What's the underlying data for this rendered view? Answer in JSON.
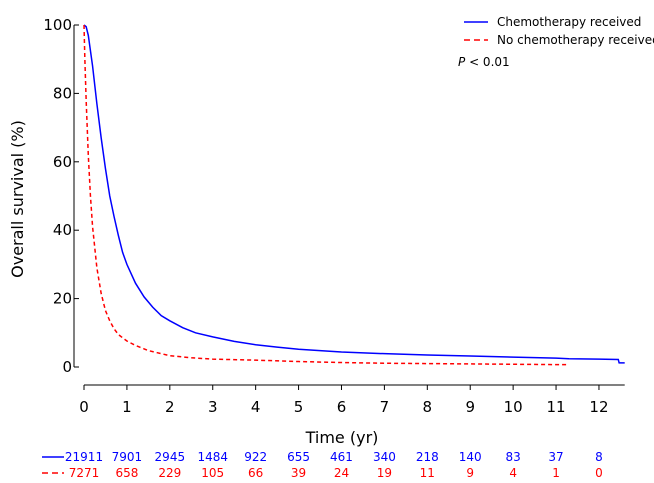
{
  "chart_data": {
    "type": "line",
    "title": "",
    "xlabel": "Time (yr)",
    "ylabel": "Overall survival (%)",
    "xlim": [
      0,
      12.7
    ],
    "ylim": [
      0,
      100
    ],
    "x_ticks": [
      0,
      1,
      2,
      3,
      4,
      5,
      6,
      7,
      8,
      9,
      10,
      11,
      12
    ],
    "y_ticks": [
      0,
      20,
      40,
      60,
      80,
      100
    ],
    "legend_position": "top-right",
    "annotation": {
      "p_label": "P",
      "p_rest": " < 0.01"
    },
    "series": [
      {
        "name": "Chemotherapy received",
        "color": "#0000ff",
        "style": "solid",
        "x": [
          0,
          0.05,
          0.1,
          0.2,
          0.3,
          0.4,
          0.5,
          0.6,
          0.7,
          0.8,
          0.9,
          1.0,
          1.2,
          1.4,
          1.6,
          1.8,
          2.0,
          2.3,
          2.6,
          3.0,
          3.5,
          4.0,
          4.5,
          5.0,
          6.0,
          7.0,
          8.0,
          9.0,
          10.0,
          11.0,
          11.3,
          12.0,
          12.45,
          12.47,
          12.6
        ],
        "y": [
          100,
          99.5,
          97,
          88,
          77,
          67,
          58,
          50,
          44,
          38.5,
          33.5,
          30,
          24.5,
          20.5,
          17.5,
          15,
          13.5,
          11.5,
          10,
          8.8,
          7.5,
          6.5,
          5.8,
          5.2,
          4.4,
          3.9,
          3.5,
          3.2,
          2.9,
          2.6,
          2.4,
          2.3,
          2.2,
          1.2,
          1.2
        ]
      },
      {
        "name": "No chemotherapy received",
        "color": "#ff0000",
        "style": "dashed",
        "x": [
          0,
          0.02,
          0.05,
          0.1,
          0.15,
          0.2,
          0.3,
          0.4,
          0.5,
          0.6,
          0.7,
          0.8,
          1.0,
          1.2,
          1.5,
          2.0,
          2.5,
          3.0,
          4.0,
          5.0,
          6.0,
          7.0,
          8.0,
          9.0,
          10.0,
          11.0,
          11.25
        ],
        "y": [
          100,
          90,
          78,
          62,
          50,
          41,
          29,
          21.5,
          16.5,
          13.5,
          11.2,
          9.5,
          7.6,
          6.3,
          4.8,
          3.3,
          2.7,
          2.3,
          2.0,
          1.6,
          1.3,
          1.1,
          1.0,
          0.9,
          0.8,
          0.7,
          0.7
        ]
      }
    ],
    "risk_table": {
      "times": [
        0,
        1,
        2,
        3,
        4,
        5,
        6,
        7,
        8,
        9,
        10,
        11,
        12
      ],
      "rows": [
        {
          "color": "#0000ff",
          "style": "solid",
          "values": [
            "21911",
            "7901",
            "2945",
            "1484",
            "922",
            "655",
            "461",
            "340",
            "218",
            "140",
            "83",
            "37",
            "8"
          ]
        },
        {
          "color": "#ff0000",
          "style": "dashed",
          "values": [
            "7271",
            "658",
            "229",
            "105",
            "66",
            "39",
            "24",
            "19",
            "11",
            "9",
            "4",
            "1",
            "0"
          ]
        }
      ]
    }
  }
}
